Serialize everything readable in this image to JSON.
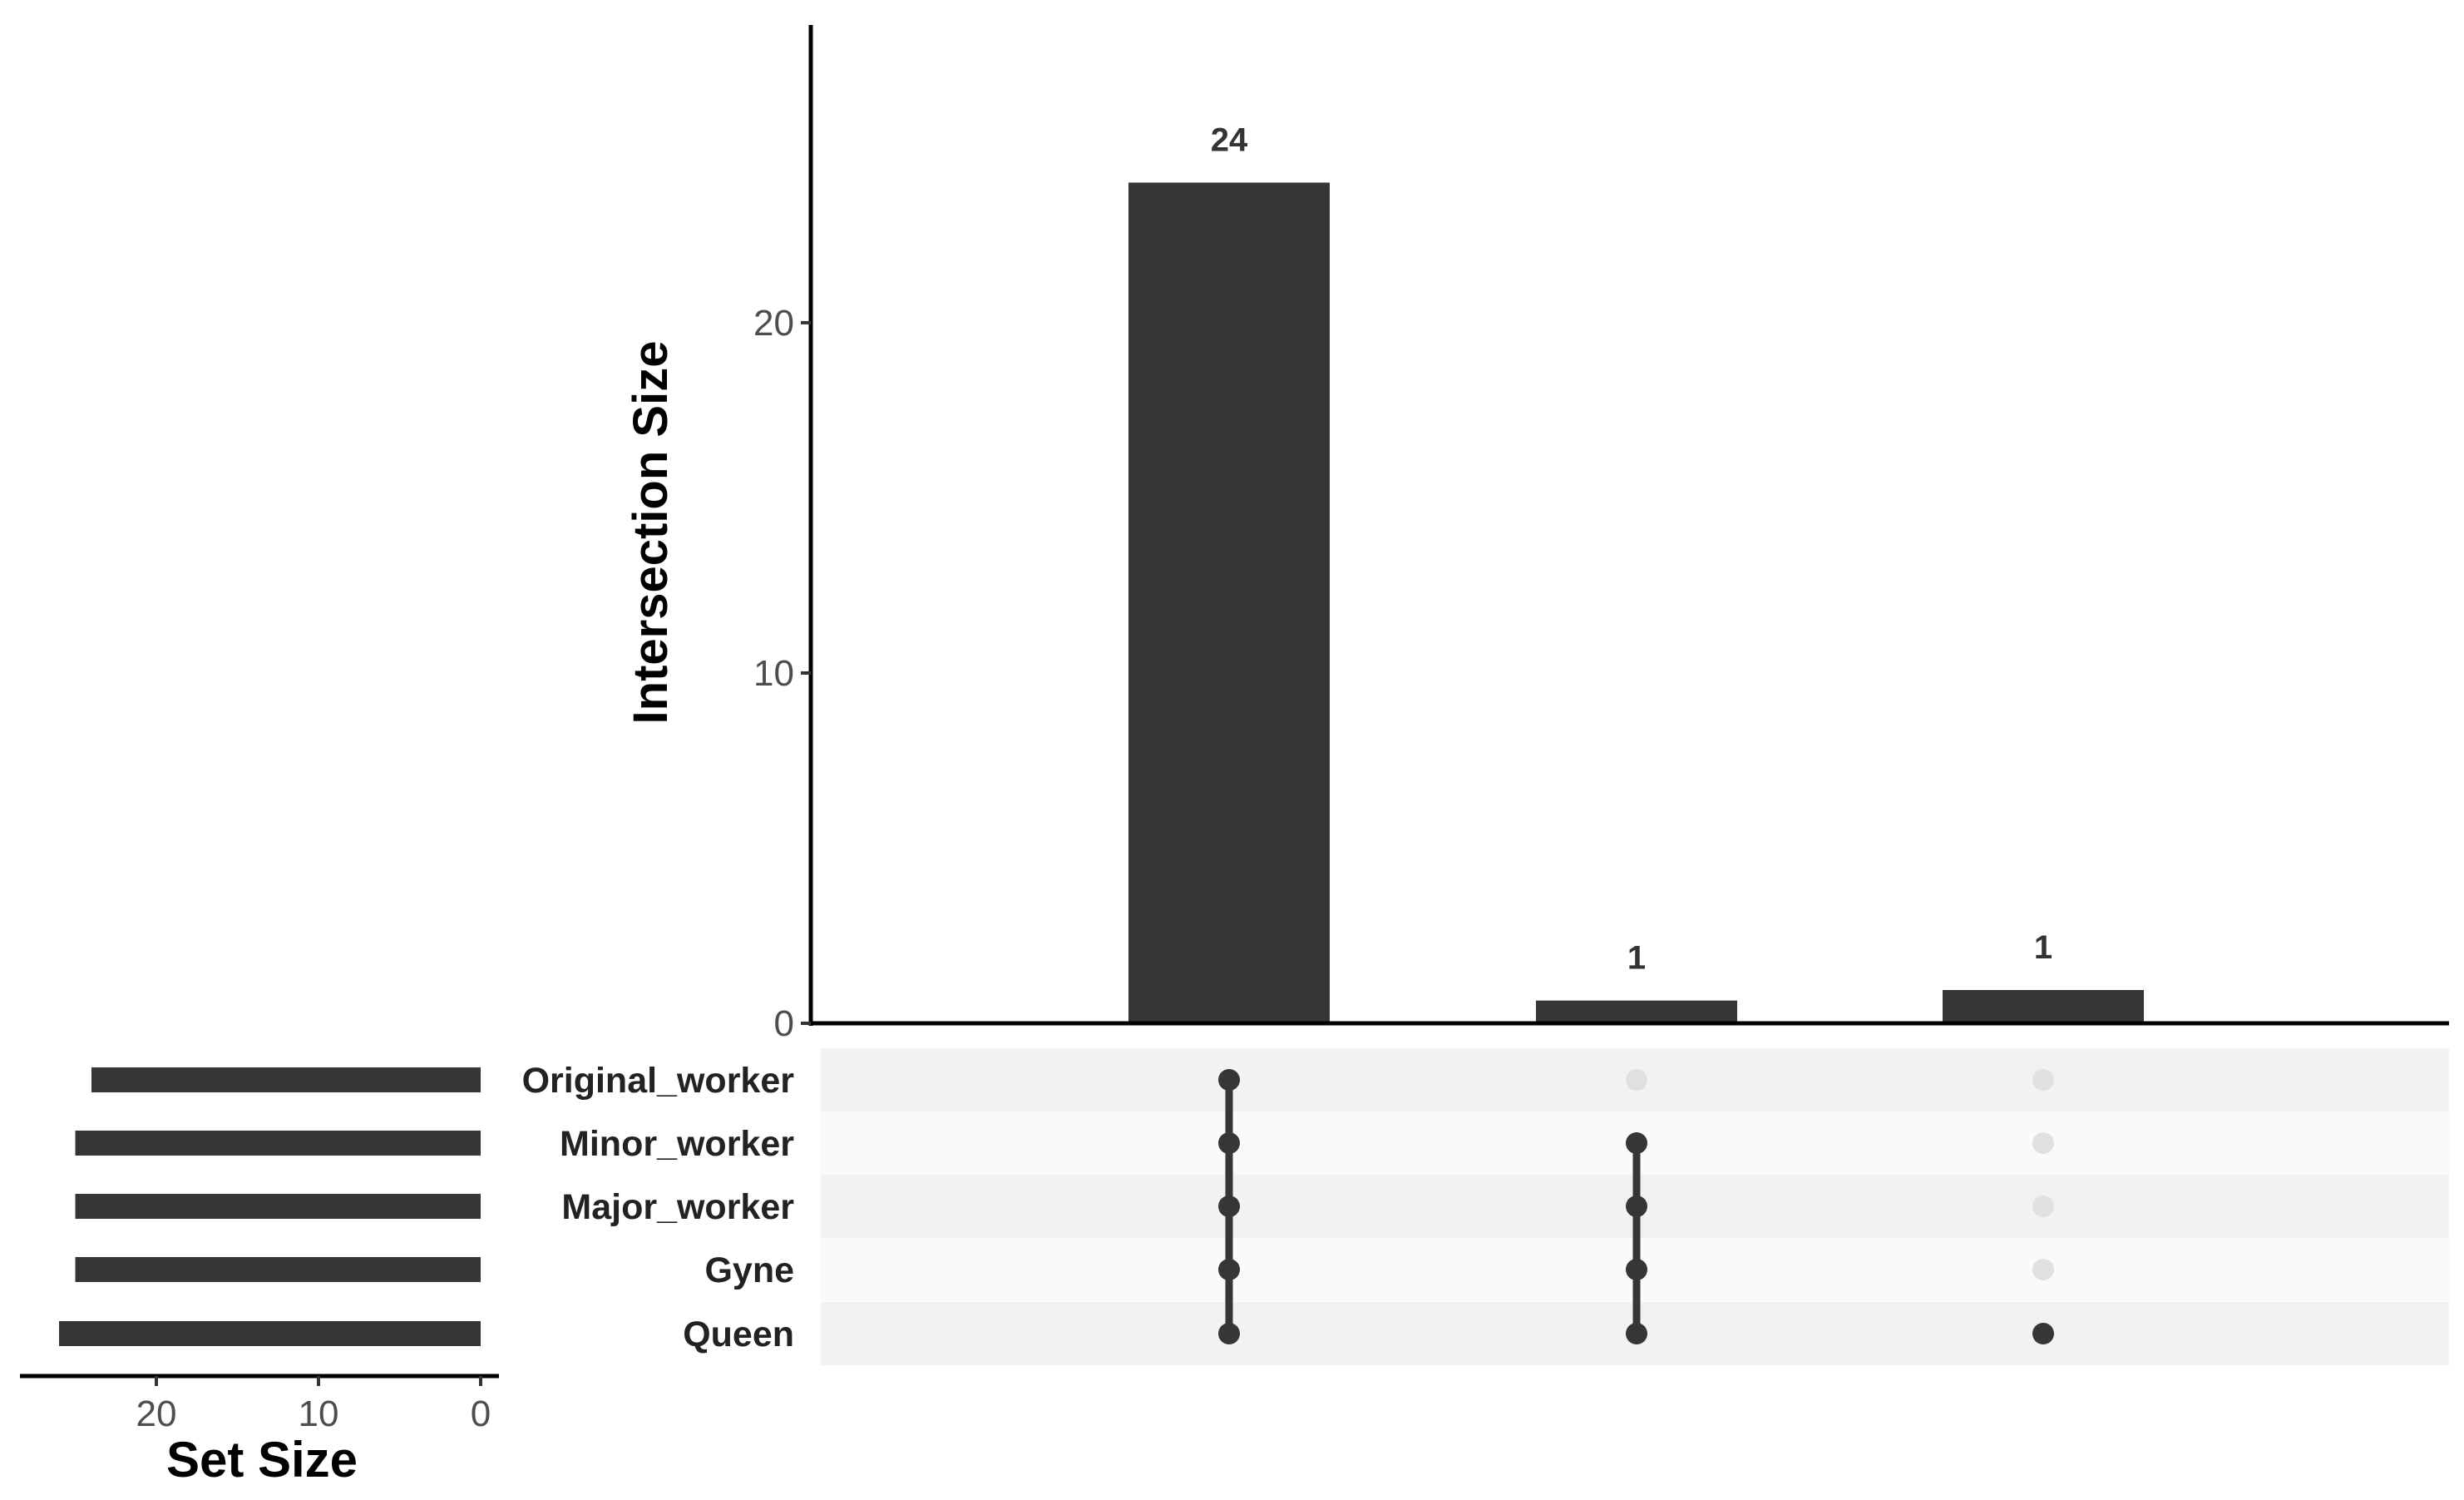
{
  "chart_data": {
    "type": "bar",
    "subtype": "upset",
    "colors": {
      "bar": "#363636",
      "dot_active": "#363636",
      "dot_inactive": "#e0e0e0",
      "stripe_dark": "#f2f2f2",
      "stripe_light": "#fafafa",
      "axis": "#000000"
    },
    "intersection": {
      "ylabel": "Intersection Size",
      "ylim": [
        0,
        28.5
      ],
      "ticks": [
        0,
        10,
        20
      ],
      "tick_labels": [
        "0",
        "10",
        "20"
      ],
      "values": [
        24,
        0.65,
        0.95
      ],
      "value_labels": [
        "24",
        "1",
        "1"
      ]
    },
    "sets": {
      "names": [
        "Original_worker",
        "Minor_worker",
        "Major_worker",
        "Gyne",
        "Queen"
      ],
      "sizes": [
        24,
        25,
        25,
        25,
        26
      ],
      "xlabel": "Set Size",
      "xlim": [
        0,
        27
      ],
      "ticks": [
        20,
        10,
        0
      ],
      "tick_labels": [
        "20",
        "10",
        "0"
      ]
    },
    "matrix": [
      [
        true,
        true,
        true,
        true,
        true
      ],
      [
        false,
        true,
        true,
        true,
        true
      ],
      [
        false,
        false,
        false,
        false,
        true
      ]
    ]
  }
}
